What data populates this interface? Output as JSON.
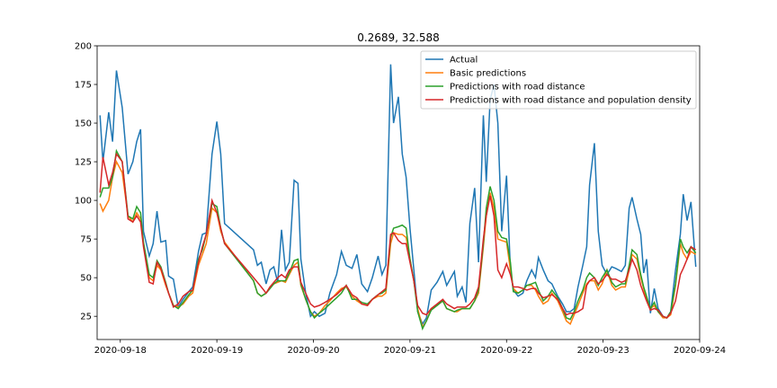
{
  "chart_data": {
    "type": "line",
    "title": "0.2689, 32.588",
    "x": [
      -0.21,
      -0.18,
      -0.12,
      -0.08,
      -0.04,
      0.02,
      0.08,
      0.13,
      0.17,
      0.21,
      0.24,
      0.3,
      0.34,
      0.38,
      0.42,
      0.47,
      0.5,
      0.55,
      0.6,
      0.65,
      0.71,
      0.75,
      0.81,
      0.85,
      0.89,
      0.95,
      1.0,
      1.04,
      1.08,
      1.38,
      1.42,
      1.46,
      1.51,
      1.55,
      1.59,
      1.63,
      1.67,
      1.71,
      1.75,
      1.8,
      1.84,
      1.87,
      1.92,
      1.97,
      2.01,
      2.06,
      2.12,
      2.17,
      2.24,
      2.29,
      2.34,
      2.4,
      2.45,
      2.5,
      2.56,
      2.61,
      2.67,
      2.71,
      2.75,
      2.8,
      2.83,
      2.88,
      2.92,
      2.96,
      3.0,
      3.04,
      3.08,
      3.13,
      3.17,
      3.22,
      3.28,
      3.34,
      3.38,
      3.46,
      3.49,
      3.54,
      3.58,
      3.62,
      3.67,
      3.71,
      3.76,
      3.79,
      3.83,
      3.87,
      3.91,
      3.95,
      4.0,
      4.04,
      4.07,
      4.12,
      4.17,
      4.21,
      4.26,
      4.3,
      4.33,
      4.38,
      4.43,
      4.47,
      4.53,
      4.58,
      4.62,
      4.66,
      4.7,
      4.74,
      4.79,
      4.83,
      4.86,
      4.91,
      4.95,
      4.99,
      5.04,
      5.09,
      5.13,
      5.19,
      5.23,
      5.27,
      5.3,
      5.35,
      5.39,
      5.42,
      5.45,
      5.49,
      5.53,
      5.57,
      5.62,
      5.66,
      5.7,
      5.75,
      5.8,
      5.83,
      5.87,
      5.91,
      5.96
    ],
    "series": [
      {
        "name": "Actual",
        "color": "#1f77b4",
        "values": [
          155,
          125,
          157,
          138,
          184,
          160,
          117,
          125,
          138,
          146,
          80,
          64,
          72,
          93,
          73,
          74,
          51,
          49,
          31,
          36,
          41,
          44,
          67,
          78,
          79,
          130,
          151,
          130,
          85,
          68,
          58,
          60,
          46,
          55,
          57,
          47,
          81,
          55,
          60,
          113,
          111,
          62,
          40,
          25,
          28,
          25,
          27,
          40,
          52,
          67,
          58,
          56,
          65,
          46,
          41,
          50,
          64,
          52,
          58,
          188,
          150,
          167,
          130,
          115,
          82,
          55,
          28,
          20,
          24,
          42,
          47,
          54,
          45,
          54,
          38,
          44,
          34,
          85,
          108,
          60,
          155,
          112,
          165,
          175,
          150,
          80,
          116,
          55,
          42,
          38,
          40,
          48,
          55,
          50,
          63,
          55,
          48,
          46,
          38,
          33,
          28,
          28,
          30,
          44,
          58,
          70,
          110,
          137,
          80,
          58,
          52,
          57,
          56,
          54,
          58,
          95,
          102,
          88,
          78,
          53,
          62,
          27,
          43,
          30,
          25,
          24,
          28,
          55,
          78,
          104,
          87,
          99,
          57
        ]
      },
      {
        "name": "Basic predictions",
        "color": "#ff7f0e",
        "values": [
          98,
          93,
          100,
          115,
          125,
          118,
          90,
          86,
          92,
          88,
          72,
          50,
          48,
          58,
          55,
          45,
          40,
          32,
          31,
          33,
          38,
          40,
          58,
          65,
          72,
          95,
          92,
          80,
          73,
          48,
          40,
          38,
          40,
          44,
          46,
          47,
          48,
          47,
          52,
          58,
          60,
          45,
          36,
          28,
          25,
          27,
          32,
          35,
          40,
          43,
          44,
          38,
          35,
          33,
          32,
          36,
          38,
          38,
          40,
          72,
          79,
          78,
          78,
          76,
          62,
          48,
          30,
          18,
          22,
          30,
          32,
          35,
          30,
          28,
          28,
          30,
          30,
          30,
          35,
          40,
          70,
          90,
          105,
          95,
          75,
          74,
          73,
          55,
          43,
          40,
          42,
          45,
          45,
          42,
          38,
          33,
          35,
          40,
          35,
          28,
          22,
          20,
          26,
          32,
          40,
          46,
          48,
          48,
          42,
          46,
          55,
          45,
          42,
          44,
          44,
          55,
          65,
          62,
          50,
          43,
          36,
          30,
          32,
          28,
          24,
          24,
          26,
          45,
          72,
          66,
          62,
          67,
          65
        ]
      },
      {
        "name": "Predictions with road distance",
        "color": "#2ca02c",
        "values": [
          102,
          108,
          108,
          115,
          132,
          125,
          90,
          88,
          96,
          92,
          73,
          52,
          50,
          61,
          57,
          47,
          40,
          32,
          30,
          34,
          39,
          42,
          62,
          68,
          78,
          98,
          96,
          82,
          72,
          48,
          40,
          38,
          40,
          43,
          46,
          48,
          48,
          48,
          53,
          61,
          62,
          46,
          36,
          28,
          24,
          27,
          30,
          33,
          37,
          40,
          45,
          36,
          36,
          34,
          33,
          36,
          39,
          40,
          42,
          76,
          82,
          83,
          84,
          82,
          62,
          48,
          28,
          17,
          22,
          29,
          32,
          35,
          30,
          28,
          29,
          30,
          30,
          30,
          35,
          42,
          72,
          95,
          109,
          100,
          80,
          76,
          75,
          60,
          41,
          40,
          42,
          45,
          46,
          47,
          42,
          35,
          38,
          42,
          37,
          30,
          24,
          23,
          28,
          35,
          42,
          50,
          53,
          50,
          45,
          50,
          55,
          47,
          44,
          46,
          46,
          58,
          68,
          65,
          52,
          44,
          38,
          30,
          34,
          28,
          25,
          24,
          28,
          46,
          75,
          70,
          66,
          70,
          66
        ]
      },
      {
        "name": "Predictions with road distance and population density",
        "color": "#d62728",
        "values": [
          105,
          128,
          110,
          118,
          130,
          125,
          88,
          86,
          90,
          86,
          70,
          47,
          46,
          60,
          56,
          46,
          40,
          31,
          33,
          38,
          41,
          42,
          60,
          70,
          78,
          100,
          92,
          82,
          72,
          50,
          47,
          44,
          40,
          44,
          47,
          50,
          52,
          50,
          55,
          57,
          57,
          47,
          40,
          33,
          31,
          32,
          34,
          36,
          39,
          42,
          45,
          39,
          37,
          33,
          32,
          36,
          39,
          41,
          43,
          78,
          79,
          74,
          72,
          72,
          60,
          48,
          32,
          27,
          26,
          30,
          33,
          36,
          33,
          30,
          31,
          31,
          31,
          33,
          37,
          44,
          75,
          90,
          103,
          90,
          55,
          50,
          59,
          52,
          44,
          44,
          43,
          42,
          43,
          43,
          40,
          37,
          38,
          39,
          36,
          30,
          26,
          27,
          27,
          28,
          30,
          45,
          48,
          50,
          46,
          48,
          52,
          49,
          49,
          47,
          48,
          55,
          62,
          55,
          45,
          40,
          35,
          29,
          30,
          29,
          25,
          24,
          27,
          35,
          52,
          56,
          62,
          70,
          68
        ]
      }
    ],
    "xlim": [
      -0.24,
      6
    ],
    "xticks": [
      {
        "value": 0,
        "label": "2020-09-18"
      },
      {
        "value": 1,
        "label": "2020-09-19"
      },
      {
        "value": 2,
        "label": "2020-09-20"
      },
      {
        "value": 3,
        "label": "2020-09-21"
      },
      {
        "value": 4,
        "label": "2020-09-22"
      },
      {
        "value": 5,
        "label": "2020-09-23"
      },
      {
        "value": 6,
        "label": "2020-09-24"
      }
    ],
    "ylim": [
      10,
      200
    ],
    "yticks": [
      25,
      50,
      75,
      100,
      125,
      150,
      175,
      200
    ],
    "legend": "upper right"
  }
}
